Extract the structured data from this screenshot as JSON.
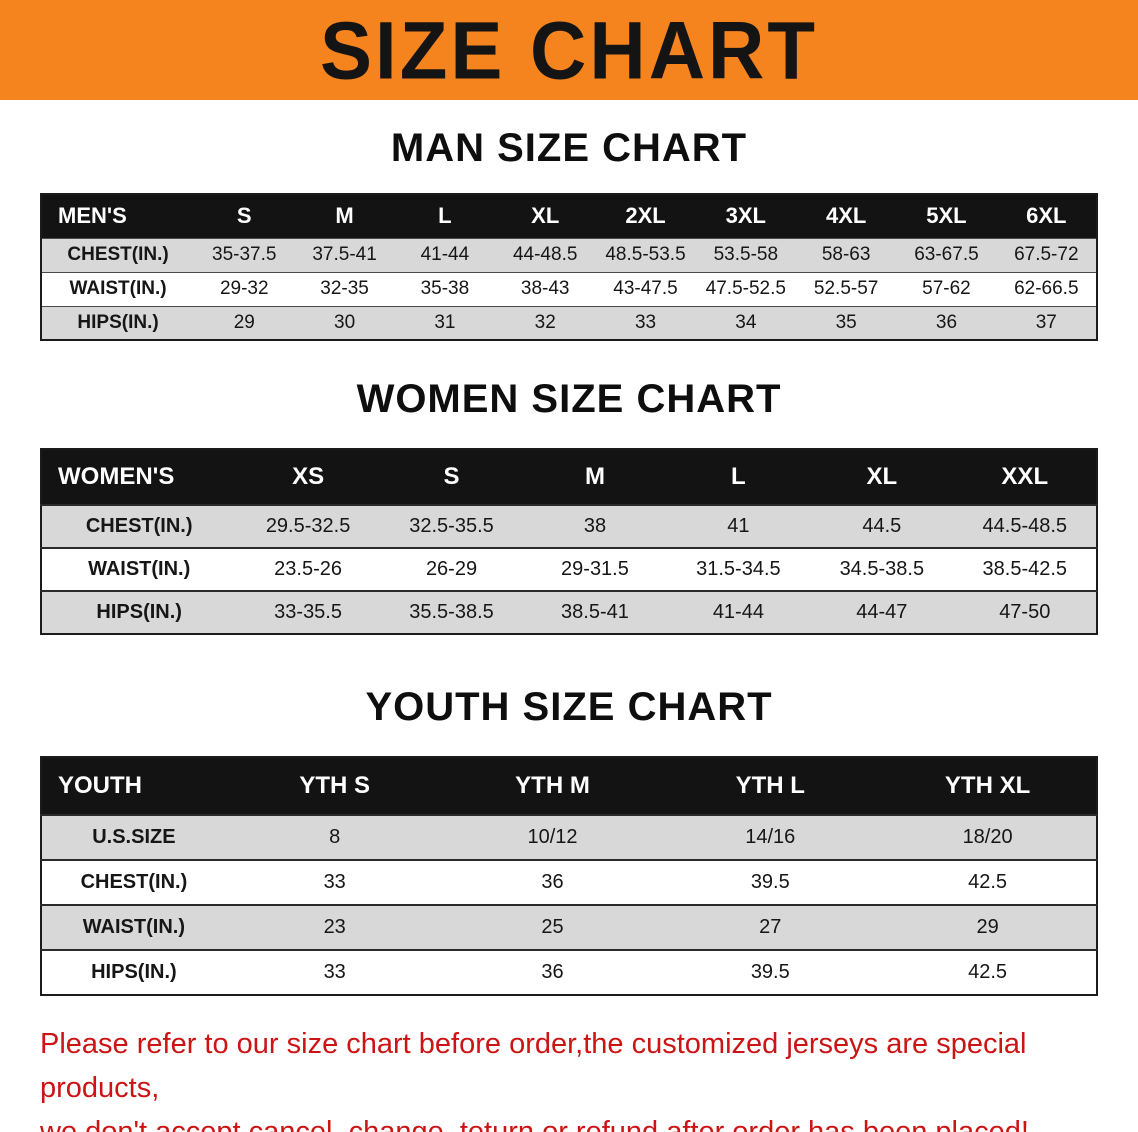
{
  "banner": {
    "title": "SIZE CHART"
  },
  "sections": [
    {
      "heading": "MAN SIZE CHART",
      "table": {
        "header": [
          "MEN'S",
          "S",
          "M",
          "L",
          "XL",
          "2XL",
          "3XL",
          "4XL",
          "5XL",
          "6XL"
        ],
        "rows": [
          {
            "label": "CHEST(IN.)",
            "values": [
              "35-37.5",
              "37.5-41",
              "41-44",
              "44-48.5",
              "48.5-53.5",
              "53.5-58",
              "58-63",
              "63-67.5",
              "67.5-72"
            ]
          },
          {
            "label": "WAIST(IN.)",
            "values": [
              "29-32",
              "32-35",
              "35-38",
              "38-43",
              "43-47.5",
              "47.5-52.5",
              "52.5-57",
              "57-62",
              "62-66.5"
            ]
          },
          {
            "label": "HIPS(IN.)",
            "values": [
              "29",
              "30",
              "31",
              "32",
              "33",
              "34",
              "35",
              "36",
              "37"
            ]
          }
        ]
      }
    },
    {
      "heading": "WOMEN SIZE CHART",
      "table": {
        "header": [
          "WOMEN'S",
          "XS",
          "S",
          "M",
          "L",
          "XL",
          "XXL"
        ],
        "rows": [
          {
            "label": "CHEST(IN.)",
            "values": [
              "29.5-32.5",
              "32.5-35.5",
              "38",
              "41",
              "44.5",
              "44.5-48.5"
            ]
          },
          {
            "label": "WAIST(IN.)",
            "values": [
              "23.5-26",
              "26-29",
              "29-31.5",
              "31.5-34.5",
              "34.5-38.5",
              "38.5-42.5"
            ]
          },
          {
            "label": "HIPS(IN.)",
            "values": [
              "33-35.5",
              "35.5-38.5",
              "38.5-41",
              "41-44",
              "44-47",
              "47-50"
            ]
          }
        ]
      }
    },
    {
      "heading": "YOUTH SIZE CHART",
      "table": {
        "header": [
          "YOUTH",
          "YTH S",
          "YTH M",
          "YTH L",
          "YTH XL"
        ],
        "rows": [
          {
            "label": "U.S.SIZE",
            "values": [
              "8",
              "10/12",
              "14/16",
              "18/20"
            ]
          },
          {
            "label": "CHEST(IN.)",
            "values": [
              "33",
              "36",
              "39.5",
              "42.5"
            ]
          },
          {
            "label": "WAIST(IN.)",
            "values": [
              "23",
              "25",
              "27",
              "29"
            ]
          },
          {
            "label": "HIPS(IN.)",
            "values": [
              "33",
              "36",
              "39.5",
              "42.5"
            ]
          }
        ]
      }
    }
  ],
  "footer": {
    "line1": "Please refer to our size chart before order,the customized jerseys are special products,",
    "line2": "we don't accept cancel, change, teturn or refund after order has been placed!"
  },
  "colors": {
    "banner_bg": "#f5831e",
    "header_bg": "#131313",
    "stripe_bg": "#d8d8d8",
    "footer_text": "#cc1414"
  }
}
